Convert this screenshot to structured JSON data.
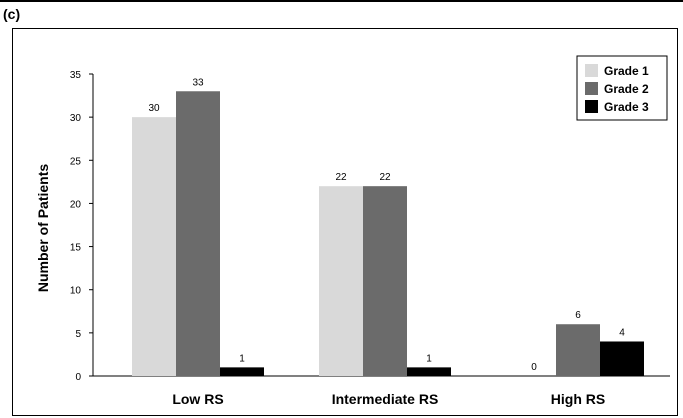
{
  "panel_label": "(c)",
  "chart_data": {
    "type": "bar",
    "title": "",
    "xlabel": "",
    "ylabel": "Number of Patients",
    "categories": [
      "Low RS",
      "Intermediate RS",
      "High RS"
    ],
    "ylim": [
      0,
      35
    ],
    "yticks": [
      0,
      5,
      10,
      15,
      20,
      25,
      30,
      35
    ],
    "grid": false,
    "legend_position": "top-right",
    "series": [
      {
        "name": "Grade 1",
        "color": "#d9d9d9",
        "values": [
          30,
          22,
          0
        ]
      },
      {
        "name": "Grade 2",
        "color": "#6b6b6b",
        "values": [
          33,
          22,
          6
        ]
      },
      {
        "name": "Grade 3",
        "color": "#000000",
        "values": [
          1,
          1,
          4
        ]
      }
    ]
  }
}
